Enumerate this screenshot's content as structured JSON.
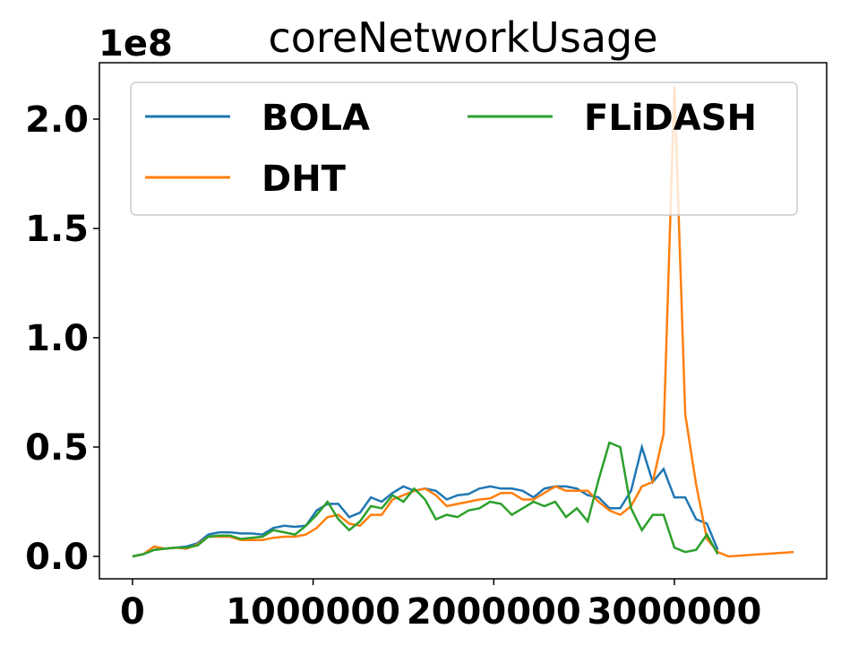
{
  "chart_data": {
    "type": "line",
    "title": "coreNetworkUsage",
    "y_offset_label": "1e8",
    "x": [
      0,
      60000,
      120000,
      180000,
      240000,
      300000,
      360000,
      420000,
      480000,
      540000,
      600000,
      660000,
      720000,
      780000,
      840000,
      900000,
      960000,
      1020000,
      1080000,
      1140000,
      1200000,
      1260000,
      1320000,
      1380000,
      1440000,
      1500000,
      1560000,
      1620000,
      1680000,
      1740000,
      1800000,
      1860000,
      1920000,
      1980000,
      2040000,
      2100000,
      2160000,
      2220000,
      2280000,
      2340000,
      2400000,
      2460000,
      2520000,
      2580000,
      2640000,
      2700000,
      2760000,
      2820000,
      2880000,
      2940000,
      3000000,
      3060000,
      3120000,
      3180000,
      3240000,
      3300000,
      3660000
    ],
    "series": [
      {
        "name": "BOLA",
        "color": "#1f77b4",
        "values": [
          0,
          0.01,
          0.03,
          0.035,
          0.04,
          0.045,
          0.06,
          0.1,
          0.11,
          0.11,
          0.105,
          0.105,
          0.1,
          0.13,
          0.14,
          0.135,
          0.14,
          0.21,
          0.24,
          0.24,
          0.18,
          0.2,
          0.27,
          0.25,
          0.29,
          0.32,
          0.3,
          0.31,
          0.3,
          0.26,
          0.28,
          0.285,
          0.31,
          0.32,
          0.31,
          0.31,
          0.3,
          0.27,
          0.31,
          0.32,
          0.32,
          0.31,
          0.28,
          0.27,
          0.22,
          0.22,
          0.3,
          0.5,
          0.34,
          0.4,
          0.27,
          0.27,
          0.17,
          0.15,
          0.03,
          null,
          null
        ]
      },
      {
        "name": "DHT",
        "color": "#ff7f0e",
        "values": [
          0,
          0.01,
          0.045,
          0.035,
          0.04,
          0.035,
          0.055,
          0.09,
          0.09,
          0.09,
          0.075,
          0.075,
          0.075,
          0.085,
          0.09,
          0.09,
          0.1,
          0.13,
          0.18,
          0.19,
          0.15,
          0.14,
          0.19,
          0.19,
          0.26,
          0.28,
          0.3,
          0.31,
          0.28,
          0.23,
          0.24,
          0.25,
          0.26,
          0.265,
          0.29,
          0.29,
          0.26,
          0.26,
          0.29,
          0.32,
          0.3,
          0.3,
          0.3,
          0.25,
          0.21,
          0.19,
          0.23,
          0.32,
          0.34,
          0.56,
          2.15,
          0.65,
          0.33,
          0.08,
          0.02,
          0.0,
          0.02
        ]
      },
      {
        "name": "FLiDASH",
        "color": "#2ca02c",
        "values": [
          0,
          0.01,
          0.03,
          0.035,
          0.04,
          0.04,
          0.05,
          0.09,
          0.095,
          0.095,
          0.08,
          0.085,
          0.09,
          0.12,
          0.11,
          0.1,
          0.14,
          0.19,
          0.25,
          0.17,
          0.12,
          0.16,
          0.23,
          0.22,
          0.28,
          0.25,
          0.31,
          0.26,
          0.17,
          0.19,
          0.18,
          0.21,
          0.22,
          0.25,
          0.24,
          0.19,
          0.22,
          0.25,
          0.23,
          0.25,
          0.18,
          0.22,
          0.16,
          0.35,
          0.52,
          0.5,
          0.22,
          0.12,
          0.19,
          0.19,
          0.04,
          0.02,
          0.03,
          0.1,
          0.01,
          null,
          null
        ]
      }
    ],
    "xlim": [
      -183000,
      3843000
    ],
    "xticks": [
      0,
      1000000,
      2000000,
      3000000
    ],
    "ylim": [
      -0.1025,
      2.258
    ],
    "yticks": [
      {
        "value": 0,
        "label": "0.0"
      },
      0.5,
      {
        "value": 1,
        "label": "1.0"
      },
      1.5,
      {
        "value": 2,
        "label": "2.0"
      }
    ],
    "legend": "upper center",
    "legend_columns": 2
  }
}
